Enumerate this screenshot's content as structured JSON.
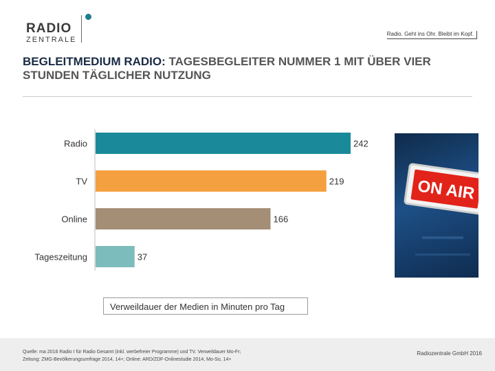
{
  "header": {
    "logo_main": "RADIO",
    "logo_sub": "ZENTRALE",
    "slogan": "Radio. Geht ins Ohr. Bleibt im Kopf.",
    "title_accent": "BEGLEITMEDIUM RADIO:",
    "title_rest": "TAGESBEGLEITER NUMMER 1 MIT ÜBER VIER STUNDEN TÄGLICHER NUTZUNG"
  },
  "photo": {
    "sign_text": "ON AIR"
  },
  "chart_data": {
    "type": "bar",
    "orientation": "horizontal",
    "categories": [
      "Radio",
      "TV",
      "Online",
      "Tageszeitung"
    ],
    "values": [
      242,
      219,
      166,
      37
    ],
    "colors": [
      "#1a8a9a",
      "#f5a040",
      "#a58e76",
      "#7dbcbc"
    ],
    "legend": "Verweildauer der Medien in Minuten pro Tag",
    "xlim": [
      0,
      242
    ]
  },
  "footer": {
    "source_line1": "Quelle: ma 2016 Radio I für Radio Gesamt (inkl. werbefreier Programme) und TV. Verweildauer Mo-Fr;",
    "source_line2": "Zeitung: ZMG-Bevölkerungsumfrage 2014, 14+; Online: ARD/ZDF-Onlinestudie 2014, Mo-So, 14+",
    "copyright": "Radiozentrale GmbH 2016"
  }
}
